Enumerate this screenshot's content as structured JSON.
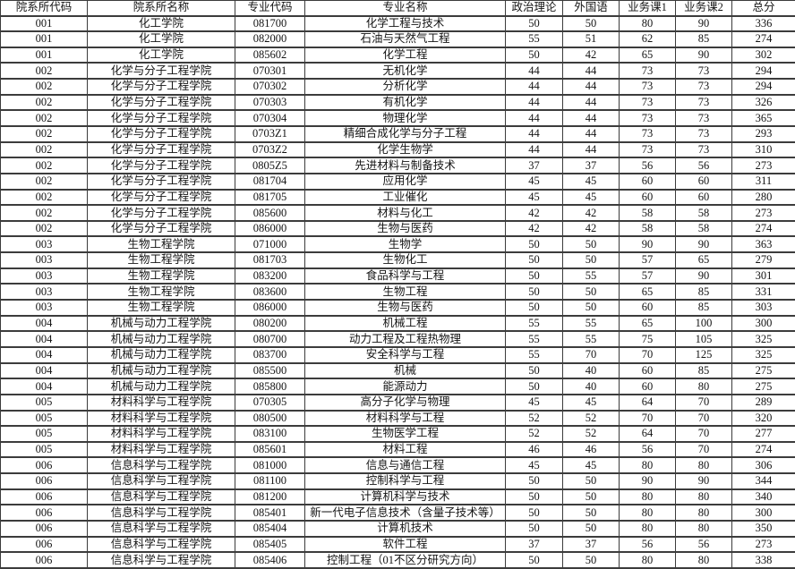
{
  "table": {
    "columns": [
      "院系所代码",
      "院系所名称",
      "专业代码",
      "专业名称",
      "政治理论",
      "外国语",
      "业务课1",
      "业务课2",
      "总分"
    ],
    "column_keys": [
      "dept-code",
      "dept-name",
      "major-code",
      "major-name",
      "politics-score",
      "foreign-language-score",
      "course1-score",
      "course2-score",
      "total-score"
    ],
    "border_color": "#3c3c3c",
    "text_color": "#141414",
    "rows": [
      [
        "001",
        "化工学院",
        "081700",
        "化学工程与技术",
        "50",
        "50",
        "80",
        "90",
        "336"
      ],
      [
        "001",
        "化工学院",
        "082000",
        "石油与天然气工程",
        "55",
        "51",
        "62",
        "85",
        "274"
      ],
      [
        "001",
        "化工学院",
        "085602",
        "化学工程",
        "50",
        "42",
        "65",
        "90",
        "302"
      ],
      [
        "002",
        "化学与分子工程学院",
        "070301",
        "无机化学",
        "44",
        "44",
        "73",
        "73",
        "294"
      ],
      [
        "002",
        "化学与分子工程学院",
        "070302",
        "分析化学",
        "44",
        "44",
        "73",
        "73",
        "294"
      ],
      [
        "002",
        "化学与分子工程学院",
        "070303",
        "有机化学",
        "44",
        "44",
        "73",
        "73",
        "326"
      ],
      [
        "002",
        "化学与分子工程学院",
        "070304",
        "物理化学",
        "44",
        "44",
        "73",
        "73",
        "365"
      ],
      [
        "002",
        "化学与分子工程学院",
        "0703Z1",
        "精细合成化学与分子工程",
        "44",
        "44",
        "73",
        "73",
        "293"
      ],
      [
        "002",
        "化学与分子工程学院",
        "0703Z2",
        "化学生物学",
        "44",
        "44",
        "73",
        "73",
        "310"
      ],
      [
        "002",
        "化学与分子工程学院",
        "0805Z5",
        "先进材料与制备技术",
        "37",
        "37",
        "56",
        "56",
        "273"
      ],
      [
        "002",
        "化学与分子工程学院",
        "081704",
        "应用化学",
        "45",
        "45",
        "60",
        "60",
        "311"
      ],
      [
        "002",
        "化学与分子工程学院",
        "081705",
        "工业催化",
        "45",
        "45",
        "60",
        "60",
        "280"
      ],
      [
        "002",
        "化学与分子工程学院",
        "085600",
        "材料与化工",
        "42",
        "42",
        "58",
        "58",
        "273"
      ],
      [
        "002",
        "化学与分子工程学院",
        "086000",
        "生物与医药",
        "42",
        "42",
        "58",
        "58",
        "274"
      ],
      [
        "003",
        "生物工程学院",
        "071000",
        "生物学",
        "50",
        "50",
        "90",
        "90",
        "363"
      ],
      [
        "003",
        "生物工程学院",
        "081703",
        "生物化工",
        "50",
        "50",
        "57",
        "65",
        "279"
      ],
      [
        "003",
        "生物工程学院",
        "083200",
        "食品科学与工程",
        "50",
        "55",
        "57",
        "90",
        "301"
      ],
      [
        "003",
        "生物工程学院",
        "083600",
        "生物工程",
        "50",
        "50",
        "65",
        "85",
        "331"
      ],
      [
        "003",
        "生物工程学院",
        "086000",
        "生物与医药",
        "50",
        "50",
        "60",
        "85",
        "303"
      ],
      [
        "004",
        "机械与动力工程学院",
        "080200",
        "机械工程",
        "55",
        "55",
        "65",
        "100",
        "300"
      ],
      [
        "004",
        "机械与动力工程学院",
        "080700",
        "动力工程及工程热物理",
        "55",
        "55",
        "75",
        "105",
        "325"
      ],
      [
        "004",
        "机械与动力工程学院",
        "083700",
        "安全科学与工程",
        "55",
        "70",
        "70",
        "125",
        "325"
      ],
      [
        "004",
        "机械与动力工程学院",
        "085500",
        "机械",
        "50",
        "40",
        "60",
        "85",
        "275"
      ],
      [
        "004",
        "机械与动力工程学院",
        "085800",
        "能源动力",
        "50",
        "40",
        "60",
        "80",
        "275"
      ],
      [
        "005",
        "材料科学与工程学院",
        "070305",
        "高分子化学与物理",
        "45",
        "45",
        "64",
        "70",
        "289"
      ],
      [
        "005",
        "材料科学与工程学院",
        "080500",
        "材料科学与工程",
        "52",
        "52",
        "70",
        "70",
        "320"
      ],
      [
        "005",
        "材料科学与工程学院",
        "083100",
        "生物医学工程",
        "52",
        "52",
        "64",
        "70",
        "277"
      ],
      [
        "005",
        "材料科学与工程学院",
        "085601",
        "材料工程",
        "46",
        "46",
        "56",
        "70",
        "274"
      ],
      [
        "006",
        "信息科学与工程学院",
        "081000",
        "信息与通信工程",
        "45",
        "45",
        "80",
        "80",
        "306"
      ],
      [
        "006",
        "信息科学与工程学院",
        "081100",
        "控制科学与工程",
        "50",
        "50",
        "90",
        "90",
        "344"
      ],
      [
        "006",
        "信息科学与工程学院",
        "081200",
        "计算机科学与技术",
        "50",
        "50",
        "80",
        "80",
        "340"
      ],
      [
        "006",
        "信息科学与工程学院",
        "085401",
        "新一代电子信息技术（含量子技术等）",
        "50",
        "50",
        "80",
        "80",
        "300"
      ],
      [
        "006",
        "信息科学与工程学院",
        "085404",
        "计算机技术",
        "50",
        "50",
        "80",
        "80",
        "350"
      ],
      [
        "006",
        "信息科学与工程学院",
        "085405",
        "软件工程",
        "37",
        "37",
        "56",
        "56",
        "273"
      ],
      [
        "006",
        "信息科学与工程学院",
        "085406",
        "控制工程（01不区分研究方向）",
        "50",
        "50",
        "80",
        "80",
        "338"
      ]
    ]
  }
}
